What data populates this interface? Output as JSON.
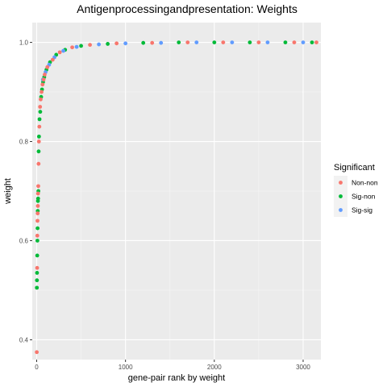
{
  "chart_data": {
    "type": "scatter",
    "title": "Antigenprocessingandpresentation: Weights",
    "xlabel": "gene-pair rank by weight",
    "ylabel": "weight",
    "xlim": [
      -50,
      3200
    ],
    "ylim": [
      0.36,
      1.04
    ],
    "x_ticks": [
      0,
      1000,
      2000,
      3000
    ],
    "y_ticks": [
      0.4,
      0.6,
      0.8,
      1.0
    ],
    "x_tick_labels": [
      "0",
      "1000",
      "2000",
      "3000"
    ],
    "y_tick_labels": [
      "0.4",
      "0.6",
      "0.8",
      "1.0"
    ],
    "grid": true,
    "legend": {
      "title": "Significant",
      "position": "right",
      "entries": [
        {
          "label": "Non-non",
          "color": "#F8766D"
        },
        {
          "label": "Sig-non",
          "color": "#00BA38"
        },
        {
          "label": "Sig-sig",
          "color": "#619CFF"
        }
      ]
    },
    "series": [
      {
        "name": "Non-non",
        "color": "#F8766D",
        "x": [
          1,
          5,
          7,
          9,
          11,
          13,
          15,
          18,
          21,
          25,
          30,
          38,
          45,
          55,
          66,
          78,
          90,
          120,
          180,
          260,
          400,
          600,
          900,
          1300,
          1700,
          2100,
          2500,
          2900,
          3150
        ],
        "y": [
          0.375,
          0.545,
          0.61,
          0.64,
          0.655,
          0.67,
          0.695,
          0.71,
          0.755,
          0.8,
          0.83,
          0.87,
          0.885,
          0.9,
          0.915,
          0.925,
          0.935,
          0.95,
          0.965,
          0.98,
          0.99,
          0.995,
          0.998,
          0.999,
          1.0,
          1.0,
          1.0,
          1.0,
          1.0
        ]
      },
      {
        "name": "Sig-non",
        "color": "#00BA38",
        "x": [
          2,
          3,
          4,
          6,
          8,
          10,
          12,
          14,
          16,
          19,
          22,
          26,
          32,
          40,
          50,
          60,
          72,
          85,
          110,
          150,
          220,
          320,
          500,
          800,
          1200,
          1600,
          2000,
          2400,
          2800,
          3100
        ],
        "y": [
          0.505,
          0.52,
          0.535,
          0.57,
          0.6,
          0.625,
          0.66,
          0.68,
          0.685,
          0.7,
          0.78,
          0.81,
          0.845,
          0.86,
          0.89,
          0.905,
          0.92,
          0.93,
          0.945,
          0.96,
          0.975,
          0.985,
          0.993,
          0.997,
          0.999,
          1.0,
          1.0,
          1.0,
          1.0,
          1.0
        ]
      },
      {
        "name": "Sig-sig",
        "color": "#619CFF",
        "x": [
          70,
          100,
          140,
          200,
          300,
          450,
          700,
          1000,
          1400,
          1800,
          2200,
          2600,
          3000
        ],
        "y": [
          0.925,
          0.94,
          0.955,
          0.97,
          0.983,
          0.991,
          0.996,
          0.998,
          0.999,
          1.0,
          1.0,
          1.0,
          1.0
        ]
      }
    ]
  }
}
